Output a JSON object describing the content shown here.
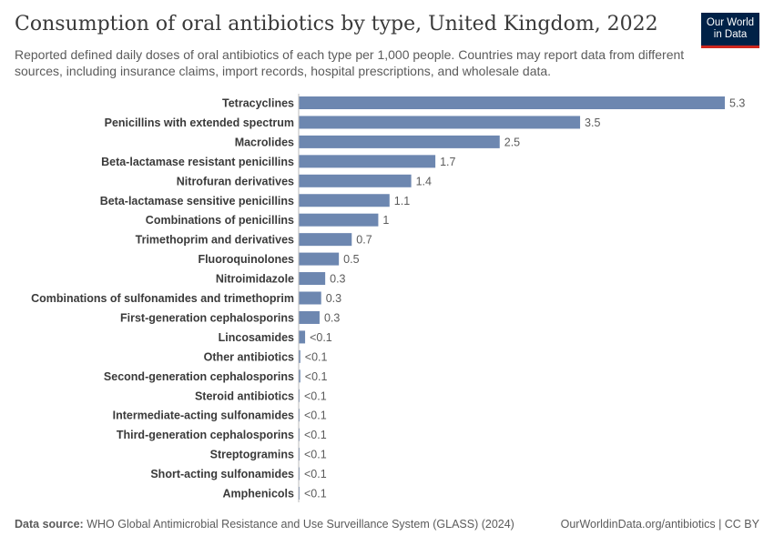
{
  "title": "Consumption of oral antibiotics by type, United Kingdom, 2022",
  "subtitle": "Reported defined daily doses of oral antibiotics of each type per 1,000 people. Countries may report data from different sources, including insurance claims, import records, hospital prescriptions, and wholesale data.",
  "logo": "Our World in Data",
  "footer": {
    "source_label": "Data source:",
    "source": "WHO Global Antimicrobial Resistance and Use Surveillance System (GLASS) (2024)",
    "link": "OurWorldinData.org/antibiotics | CC BY"
  },
  "colors": {
    "bar": "#6d87b0",
    "logo_bg": "#002147",
    "logo_accent": "#ce261e"
  },
  "chart_data": {
    "type": "bar",
    "orientation": "horizontal",
    "title": "Consumption of oral antibiotics by type, United Kingdom, 2022",
    "categories": [
      "Tetracyclines",
      "Penicillins with extended spectrum",
      "Macrolides",
      "Beta-lactamase resistant penicillins",
      "Nitrofuran derivatives",
      "Beta-lactamase sensitive penicillins",
      "Combinations of penicillins",
      "Trimethoprim and derivatives",
      "Fluoroquinolones",
      "Nitroimidazole",
      "Combinations of sulfonamides and trimethoprim",
      "First-generation cephalosporins",
      "Lincosamides",
      "Other antibiotics",
      "Second-generation cephalosporins",
      "Steroid antibiotics",
      "Intermediate-acting sulfonamides",
      "Third-generation cephalosporins",
      "Streptogramins",
      "Short-acting sulfonamides",
      "Amphenicols"
    ],
    "values": [
      5.3,
      3.5,
      2.5,
      1.7,
      1.4,
      1.13,
      0.99,
      0.66,
      0.5,
      0.33,
      0.28,
      0.26,
      0.08,
      0.02,
      0.02,
      0.01,
      0.01,
      0.01,
      0.01,
      0.01,
      0.01
    ],
    "labels": [
      "5.3",
      "3.5",
      "2.5",
      "1.7",
      "1.4",
      "1.1",
      "1",
      "0.7",
      "0.5",
      "0.3",
      "0.3",
      "0.3",
      "<0.1",
      "<0.1",
      "<0.1",
      "<0.1",
      "<0.1",
      "<0.1",
      "<0.1",
      "<0.1",
      "<0.1"
    ],
    "xlim": [
      0,
      5.3
    ],
    "grid": false,
    "legend": "none"
  }
}
